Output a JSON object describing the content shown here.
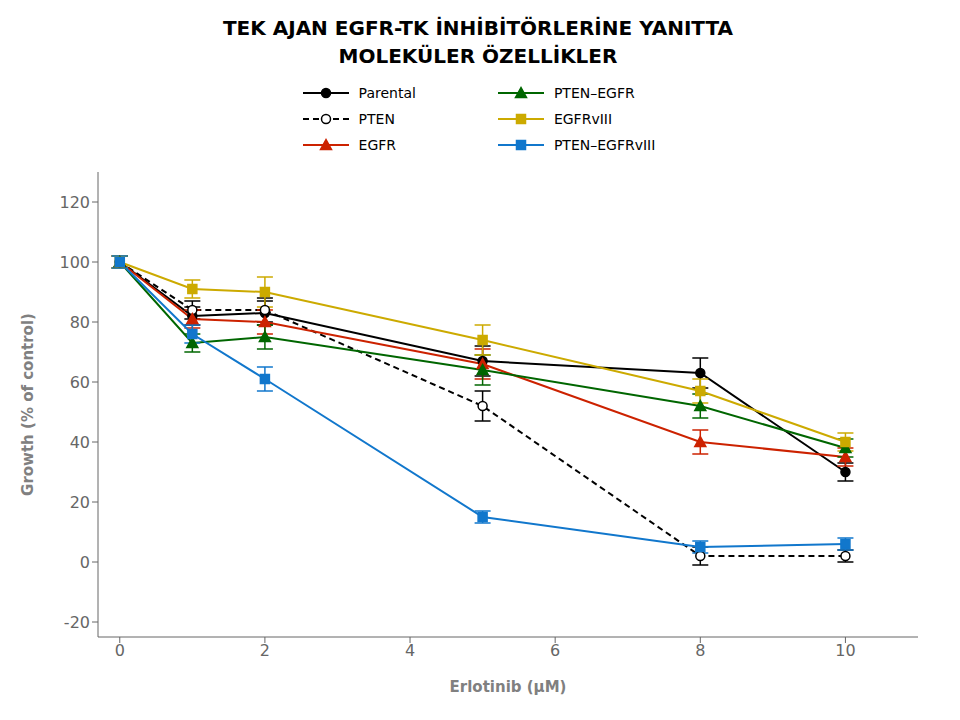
{
  "chart_data": {
    "type": "line",
    "title": "TEK  AJAN EGFR-TK İNHİBİTÖRLERİNE YANITTA",
    "subtitle": "MOLEKÜLER ÖZELLİKLER",
    "x_label": "Erlotinib (μM)",
    "y_label": "Growth (% of control)",
    "x": [
      0,
      1,
      2,
      5,
      8,
      10
    ],
    "xlim": [
      -0.3,
      11
    ],
    "ylim": [
      -25,
      130
    ],
    "xticks": [
      0,
      2,
      4,
      6,
      8,
      10
    ],
    "yticks": [
      -20,
      0,
      20,
      40,
      60,
      80,
      100,
      120
    ],
    "grid": false,
    "legend": "top",
    "series": [
      {
        "name": "Parental",
        "color": "#000000",
        "marker": "circle",
        "line_style": "solid",
        "values": [
          100,
          82,
          83,
          67,
          63,
          30
        ],
        "errors": [
          2,
          3,
          4,
          5,
          5,
          3
        ]
      },
      {
        "name": "PTEN",
        "color": "#000000",
        "marker": "open_circle",
        "line_style": "dashed",
        "values": [
          100,
          84,
          84,
          52,
          2,
          2
        ],
        "errors": [
          2,
          3,
          4,
          5,
          3,
          2
        ]
      },
      {
        "name": "EGFR",
        "color": "#CC2200",
        "marker": "triangle",
        "line_style": "solid",
        "values": [
          100,
          81,
          80,
          66,
          40,
          35
        ],
        "errors": [
          2,
          3,
          4,
          5,
          4,
          3
        ]
      },
      {
        "name": "PTEN–EGFR",
        "color": "#006600",
        "marker": "triangle",
        "line_style": "solid",
        "values": [
          100,
          73,
          75,
          64,
          52,
          38
        ],
        "errors": [
          2,
          3,
          4,
          5,
          4,
          3
        ]
      },
      {
        "name": "EGFRvIII",
        "color": "#CCAA00",
        "marker": "square",
        "line_style": "solid",
        "values": [
          100,
          91,
          90,
          74,
          57,
          40
        ],
        "errors": [
          2,
          3,
          5,
          5,
          4,
          3
        ]
      },
      {
        "name": "PTEN–EGFRvIII",
        "color": "#1177CC",
        "marker": "square",
        "line_style": "solid",
        "values": [
          100,
          76,
          61,
          15,
          5,
          6
        ],
        "errors": [
          2,
          3,
          4,
          2,
          2,
          2
        ]
      }
    ]
  }
}
